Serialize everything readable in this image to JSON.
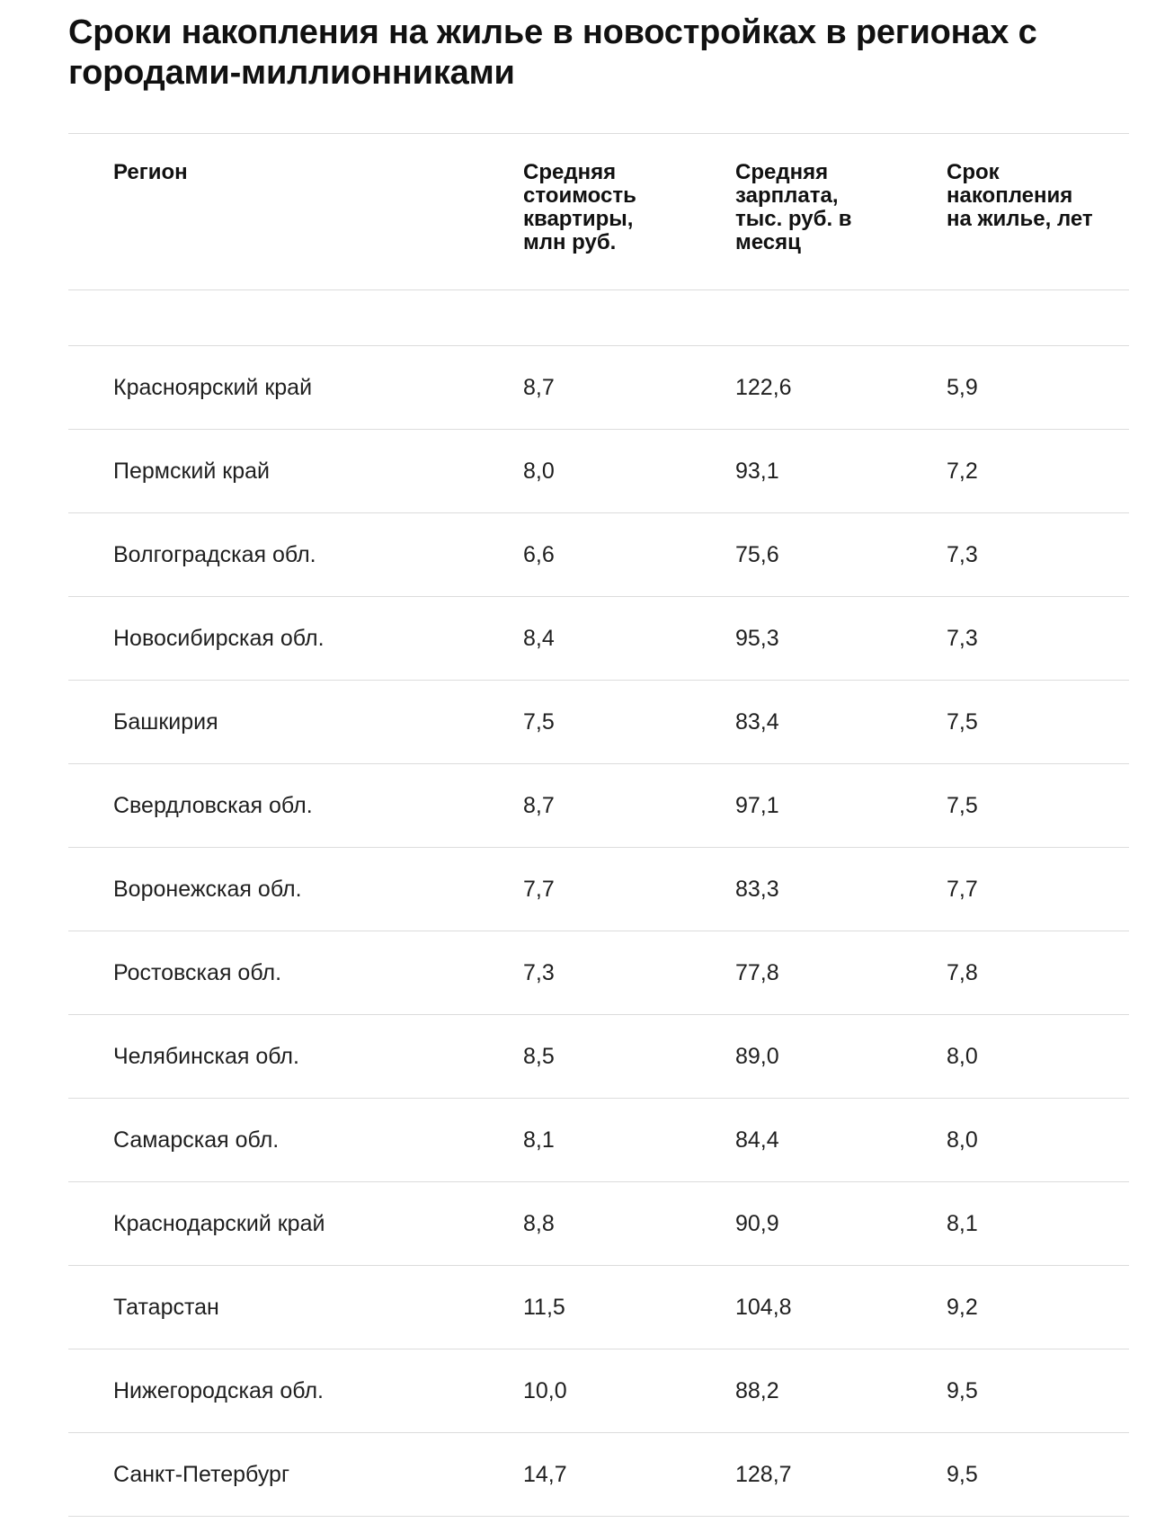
{
  "title": "Сроки накопления на жилье в новостройках в регионах с городами-миллионниками",
  "table": {
    "headers": {
      "region": "Регион",
      "price": "Средняя стоимость квартиры, млн руб.",
      "salary": "Средняя зарплата, тыс. руб. в месяц",
      "years": "Срок накопления на жилье, лет"
    },
    "rows": [
      {
        "region": "Красноярский край",
        "price": "8,7",
        "salary": "122,6",
        "years": "5,9"
      },
      {
        "region": "Пермский край",
        "price": "8,0",
        "salary": "93,1",
        "years": "7,2"
      },
      {
        "region": "Волгоградская обл.",
        "price": "6,6",
        "salary": "75,6",
        "years": "7,3"
      },
      {
        "region": "Новосибирская обл.",
        "price": "8,4",
        "salary": "95,3",
        "years": "7,3"
      },
      {
        "region": "Башкирия",
        "price": "7,5",
        "salary": "83,4",
        "years": "7,5"
      },
      {
        "region": "Свердловская обл.",
        "price": "8,7",
        "salary": "97,1",
        "years": "7,5"
      },
      {
        "region": "Воронежская обл.",
        "price": "7,7",
        "salary": "83,3",
        "years": "7,7"
      },
      {
        "region": "Ростовская обл.",
        "price": "7,3",
        "salary": "77,8",
        "years": "7,8"
      },
      {
        "region": "Челябинская обл.",
        "price": "8,5",
        "salary": "89,0",
        "years": "8,0"
      },
      {
        "region": "Самарская обл.",
        "price": "8,1",
        "salary": "84,4",
        "years": "8,0"
      },
      {
        "region": "Краснодарский край",
        "price": "8,8",
        "salary": "90,9",
        "years": "8,1"
      },
      {
        "region": "Татарстан",
        "price": "11,5",
        "salary": "104,8",
        "years": "9,2"
      },
      {
        "region": "Нижегородская обл.",
        "price": "10,0",
        "salary": "88,2",
        "years": "9,5"
      },
      {
        "region": "Санкт-Петербург",
        "price": "14,7",
        "salary": "128,7",
        "years": "9,5"
      }
    ]
  }
}
